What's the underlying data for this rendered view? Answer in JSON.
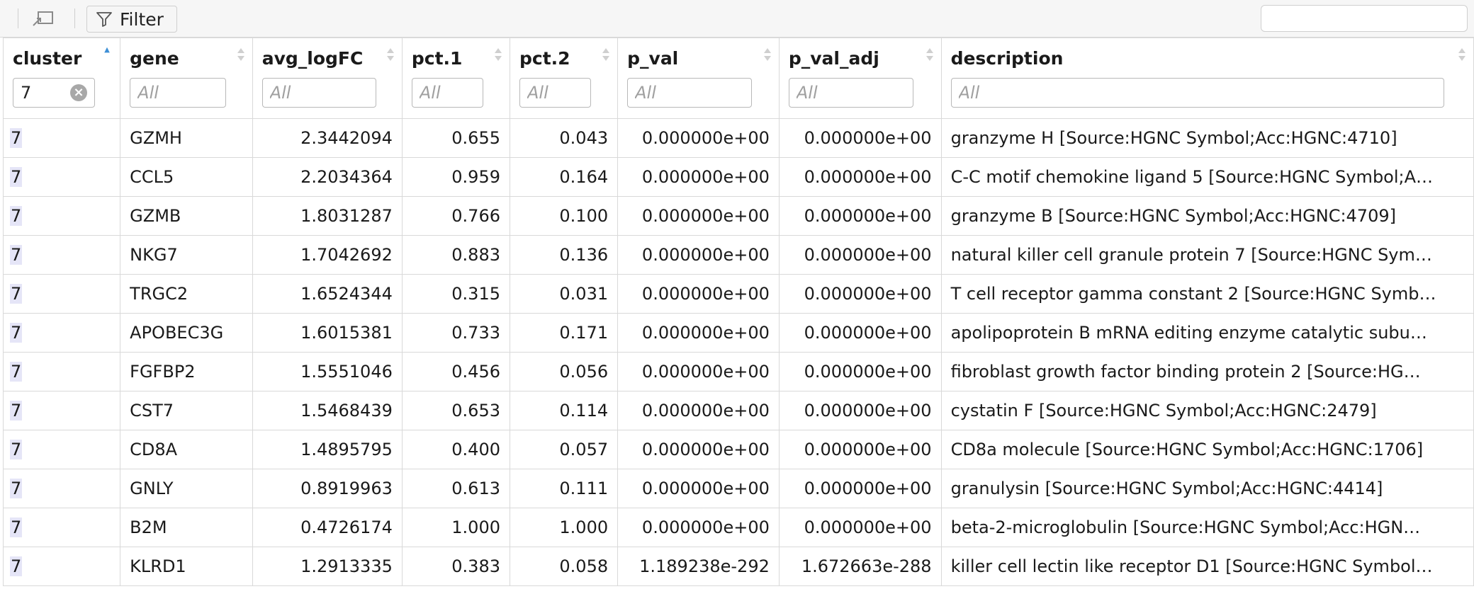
{
  "toolbar": {
    "filter_label": "Filter",
    "search_value": "",
    "search_placeholder": ""
  },
  "columns": [
    {
      "key": "cluster",
      "label": "cluster",
      "filter_value": "7",
      "filter_placeholder": "All",
      "sorted": "asc"
    },
    {
      "key": "gene",
      "label": "gene",
      "filter_value": "",
      "filter_placeholder": "All"
    },
    {
      "key": "avg_logFC",
      "label": "avg_logFC",
      "filter_value": "",
      "filter_placeholder": "All"
    },
    {
      "key": "pct1",
      "label": "pct.1",
      "filter_value": "",
      "filter_placeholder": "All"
    },
    {
      "key": "pct2",
      "label": "pct.2",
      "filter_value": "",
      "filter_placeholder": "All"
    },
    {
      "key": "p_val",
      "label": "p_val",
      "filter_value": "",
      "filter_placeholder": "All"
    },
    {
      "key": "p_val_adj",
      "label": "p_val_adj",
      "filter_value": "",
      "filter_placeholder": "All"
    },
    {
      "key": "description",
      "label": "description",
      "filter_value": "",
      "filter_placeholder": "All"
    }
  ],
  "rows": [
    {
      "cluster": "7",
      "gene": "GZMH",
      "avg_logFC": "2.3442094",
      "pct1": "0.655",
      "pct2": "0.043",
      "p_val": "0.000000e+00",
      "p_val_adj": "0.000000e+00",
      "description": "granzyme H [Source:HGNC Symbol;Acc:HGNC:4710]"
    },
    {
      "cluster": "7",
      "gene": "CCL5",
      "avg_logFC": "2.2034364",
      "pct1": "0.959",
      "pct2": "0.164",
      "p_val": "0.000000e+00",
      "p_val_adj": "0.000000e+00",
      "description": "C-C motif chemokine ligand 5 [Source:HGNC Symbol;A…"
    },
    {
      "cluster": "7",
      "gene": "GZMB",
      "avg_logFC": "1.8031287",
      "pct1": "0.766",
      "pct2": "0.100",
      "p_val": "0.000000e+00",
      "p_val_adj": "0.000000e+00",
      "description": "granzyme B [Source:HGNC Symbol;Acc:HGNC:4709]"
    },
    {
      "cluster": "7",
      "gene": "NKG7",
      "avg_logFC": "1.7042692",
      "pct1": "0.883",
      "pct2": "0.136",
      "p_val": "0.000000e+00",
      "p_val_adj": "0.000000e+00",
      "description": "natural killer cell granule protein 7 [Source:HGNC Sym…"
    },
    {
      "cluster": "7",
      "gene": "TRGC2",
      "avg_logFC": "1.6524344",
      "pct1": "0.315",
      "pct2": "0.031",
      "p_val": "0.000000e+00",
      "p_val_adj": "0.000000e+00",
      "description": "T cell receptor gamma constant 2 [Source:HGNC Symb…"
    },
    {
      "cluster": "7",
      "gene": "APOBEC3G",
      "avg_logFC": "1.6015381",
      "pct1": "0.733",
      "pct2": "0.171",
      "p_val": "0.000000e+00",
      "p_val_adj": "0.000000e+00",
      "description": "apolipoprotein B mRNA editing enzyme catalytic subu…"
    },
    {
      "cluster": "7",
      "gene": "FGFBP2",
      "avg_logFC": "1.5551046",
      "pct1": "0.456",
      "pct2": "0.056",
      "p_val": "0.000000e+00",
      "p_val_adj": "0.000000e+00",
      "description": "fibroblast growth factor binding protein 2 [Source:HG…"
    },
    {
      "cluster": "7",
      "gene": "CST7",
      "avg_logFC": "1.5468439",
      "pct1": "0.653",
      "pct2": "0.114",
      "p_val": "0.000000e+00",
      "p_val_adj": "0.000000e+00",
      "description": "cystatin F [Source:HGNC Symbol;Acc:HGNC:2479]"
    },
    {
      "cluster": "7",
      "gene": "CD8A",
      "avg_logFC": "1.4895795",
      "pct1": "0.400",
      "pct2": "0.057",
      "p_val": "0.000000e+00",
      "p_val_adj": "0.000000e+00",
      "description": "CD8a molecule [Source:HGNC Symbol;Acc:HGNC:1706]"
    },
    {
      "cluster": "7",
      "gene": "GNLY",
      "avg_logFC": "0.8919963",
      "pct1": "0.613",
      "pct2": "0.111",
      "p_val": "0.000000e+00",
      "p_val_adj": "0.000000e+00",
      "description": "granulysin [Source:HGNC Symbol;Acc:HGNC:4414]"
    },
    {
      "cluster": "7",
      "gene": "B2M",
      "avg_logFC": "0.4726174",
      "pct1": "1.000",
      "pct2": "1.000",
      "p_val": "0.000000e+00",
      "p_val_adj": "0.000000e+00",
      "description": "beta-2-microglobulin [Source:HGNC Symbol;Acc:HGN…"
    },
    {
      "cluster": "7",
      "gene": "KLRD1",
      "avg_logFC": "1.2913335",
      "pct1": "0.383",
      "pct2": "0.058",
      "p_val": "1.189238e-292",
      "p_val_adj": "1.672663e-288",
      "description": "killer cell lectin like receptor D1 [Source:HGNC Symbol…"
    }
  ]
}
